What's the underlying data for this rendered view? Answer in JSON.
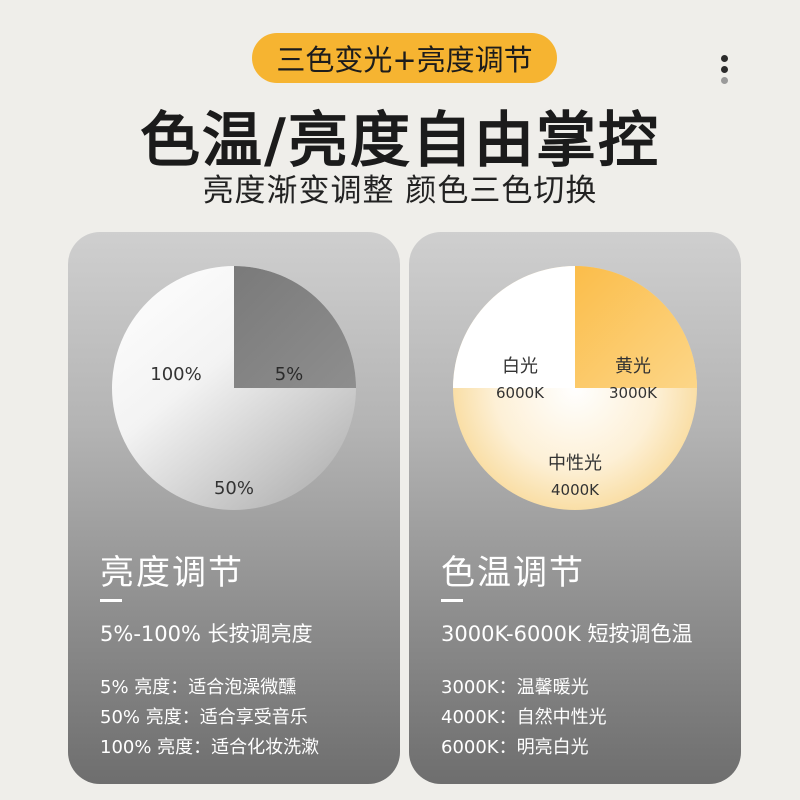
{
  "header": {
    "pill_label": "三色变光+亮度调节",
    "title": "色温/亮度自由掌控",
    "subtitle": "亮度渐变调整  颜色三色切换"
  },
  "colors": {
    "accent": "#f6b431",
    "background": "#efeeea",
    "warm_light": "#fbc45a",
    "white_light": "#ffffff"
  },
  "brightness_card": {
    "pie_labels": {
      "high": "100%",
      "low": "5%",
      "mid": "50%"
    },
    "title": "亮度调节",
    "main": "5%-100%  长按调亮度",
    "items": [
      "5% 亮度：适合泡澡微醺",
      "50% 亮度：适合享受音乐",
      "100% 亮度：适合化妆洗漱"
    ]
  },
  "color_card": {
    "pie_labels": {
      "white_name": "白光",
      "white_temp": "6000K",
      "yellow_name": "黄光",
      "yellow_temp": "3000K",
      "neutral_name": "中性光",
      "neutral_temp": "4000K"
    },
    "title": "色温调节",
    "main": "3000K-6000K  短按调色温",
    "items": [
      "3000K：温馨暖光",
      "4000K：自然中性光",
      "6000K：明亮白光"
    ]
  }
}
